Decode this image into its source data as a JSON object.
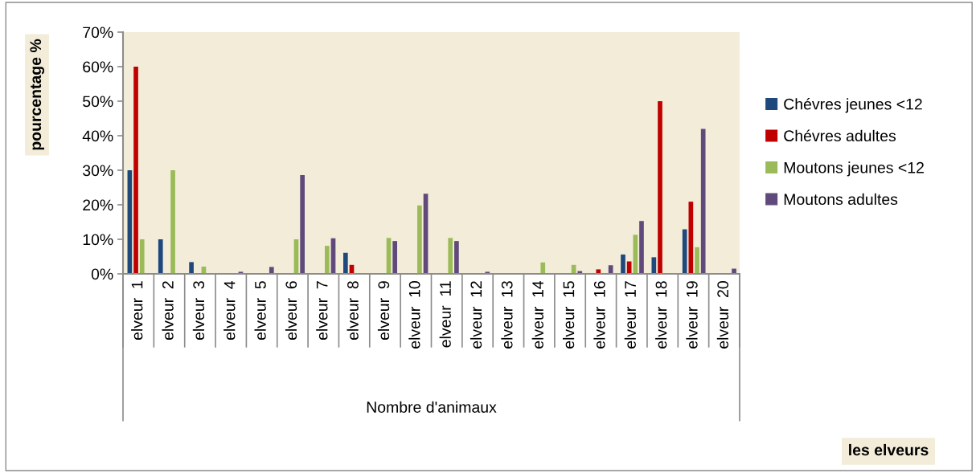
{
  "chart_data": {
    "type": "bar",
    "ylabel": "pourcentage %",
    "xlabel": "Nombre d'animaux",
    "annotations": [
      "les elveurs"
    ],
    "categories": [
      "elveur  1",
      "elveur  2",
      "elveur  3",
      "elveur  4",
      "elveur  5",
      "elveur  6",
      "elveur  7",
      "elveur  8",
      "elveur  9",
      "elveur  10",
      "elveur  11",
      "elveur  12",
      "elveur  13",
      "elveur  14",
      "elveur  15",
      "elveur  16",
      "elveur  17",
      "elveur  18",
      "elveur  19",
      "elveur  20"
    ],
    "series": [
      {
        "name": "Chévres jeunes <12",
        "color": "#1f497d",
        "values": [
          30,
          10,
          3.4,
          0,
          0,
          0,
          0,
          6.1,
          0,
          0,
          0,
          0,
          0,
          0,
          0,
          0,
          5.6,
          4.8,
          12.9,
          0
        ]
      },
      {
        "name": "Chévres adultes",
        "color": "#c00000",
        "values": [
          60,
          0,
          0,
          0,
          0,
          0,
          0,
          2.6,
          0,
          0,
          0,
          0,
          0,
          0,
          0,
          1.3,
          3.6,
          50,
          20.9,
          0
        ]
      },
      {
        "name": "Moutons jeunes <12",
        "color": "#9bbb59",
        "values": [
          10,
          30,
          2.1,
          0,
          0,
          10,
          8.1,
          0,
          10.4,
          19.8,
          10.4,
          0,
          0,
          3.3,
          2.6,
          0,
          11.3,
          0,
          7.7,
          0
        ]
      },
      {
        "name": "Moutons adultes",
        "color": "#604a7b",
        "values": [
          0,
          0,
          0,
          0.6,
          2.0,
          28.6,
          10.3,
          0.2,
          9.5,
          23.2,
          9.5,
          0.6,
          0,
          0,
          0.8,
          2.5,
          15.3,
          0,
          42.0,
          1.5
        ]
      }
    ],
    "ylim": [
      0,
      70
    ],
    "yticks": [
      {
        "value": 0,
        "label": "0%"
      },
      {
        "value": 10,
        "label": "10%"
      },
      {
        "value": 20,
        "label": "20%"
      },
      {
        "value": 30,
        "label": "30%"
      },
      {
        "value": 40,
        "label": "40%"
      },
      {
        "value": 50,
        "label": "50%"
      },
      {
        "value": 60,
        "label": "60%"
      },
      {
        "value": 70,
        "label": "70%"
      }
    ],
    "grid": false,
    "legend": "right"
  }
}
